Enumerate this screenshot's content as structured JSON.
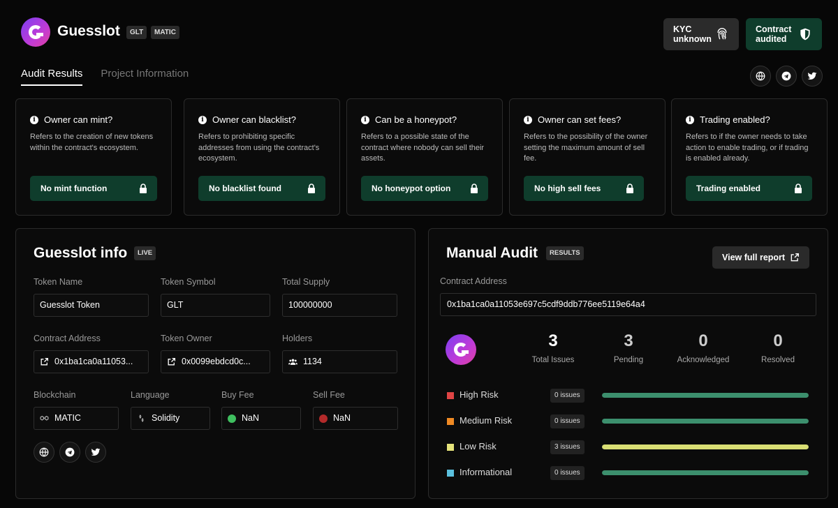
{
  "header": {
    "brand": "Guesslot",
    "tags": [
      "GLT",
      "MATIC"
    ],
    "kyc_label": "KYC unknown",
    "audit_label": "Contract audited"
  },
  "tabs": [
    {
      "label": "Audit Results",
      "active": true
    },
    {
      "label": "Project Information",
      "active": false
    }
  ],
  "social_icons": [
    "globe-icon",
    "telegram-icon",
    "twitter-icon"
  ],
  "checks": [
    {
      "title": "Owner can mint?",
      "desc": "Refers to the creation of new tokens within the contract's ecosystem.",
      "result": "No mint function"
    },
    {
      "title": "Owner can blacklist?",
      "desc": "Refers to prohibiting specific addresses from using the contract's ecosystem.",
      "result": "No blacklist found"
    },
    {
      "title": "Can be a honeypot?",
      "desc": "Refers to a possible state of the contract where nobody can sell their assets.",
      "result": "No honeypot option"
    },
    {
      "title": "Owner can set fees?",
      "desc": "Refers to the possibility of the owner setting the maximum amount of sell fee.",
      "result": "No high sell fees"
    },
    {
      "title": "Trading enabled?",
      "desc": "Refers to if the owner needs to take action to enable trading, or if trading is enabled already.",
      "result": "Trading enabled"
    }
  ],
  "info": {
    "title": "Guesslot info",
    "tag": "LIVE",
    "token_name_label": "Token Name",
    "token_name": "Guesslot Token",
    "token_symbol_label": "Token Symbol",
    "token_symbol": "GLT",
    "total_supply_label": "Total Supply",
    "total_supply": "100000000",
    "contract_address_label": "Contract Address",
    "contract_address": "0x1ba1ca0a11053...",
    "token_owner_label": "Token Owner",
    "token_owner": "0x0099ebdcd0c...",
    "holders_label": "Holders",
    "holders": "1134",
    "blockchain_label": "Blockchain",
    "blockchain": "MATIC",
    "language_label": "Language",
    "language": "Solidity",
    "buy_fee_label": "Buy Fee",
    "buy_fee": "NaN",
    "buy_fee_color": "#3fbf5f",
    "sell_fee_label": "Sell Fee",
    "sell_fee": "NaN",
    "sell_fee_color": "#b32a2a"
  },
  "audit": {
    "title": "Manual Audit",
    "tag": "RESULTS",
    "view_report": "View full report",
    "contract_address_label": "Contract Address",
    "contract_address": "0x1ba1ca0a11053e697c5cdf9ddb776ee5119e64a4",
    "stats": [
      {
        "value": "3",
        "caption": "Total Issues"
      },
      {
        "value": "3",
        "caption": "Pending"
      },
      {
        "value": "0",
        "caption": "Acknowledged"
      },
      {
        "value": "0",
        "caption": "Resolved"
      }
    ],
    "risks": [
      {
        "name": "High Risk",
        "count": "0 issues",
        "color": "#e04545",
        "bar_color": "#3c8f6d",
        "fill": 1.0
      },
      {
        "name": "Medium Risk",
        "count": "0 issues",
        "color": "#f08a24",
        "bar_color": "#3c8f6d",
        "fill": 1.0
      },
      {
        "name": "Low Risk",
        "count": "3 issues",
        "color": "#e5e37a",
        "bar_color": "#d9de74",
        "fill": 1.0
      },
      {
        "name": "Informational",
        "count": "0 issues",
        "color": "#5bc0de",
        "bar_color": "#3c8f6d",
        "fill": 1.0
      }
    ]
  }
}
